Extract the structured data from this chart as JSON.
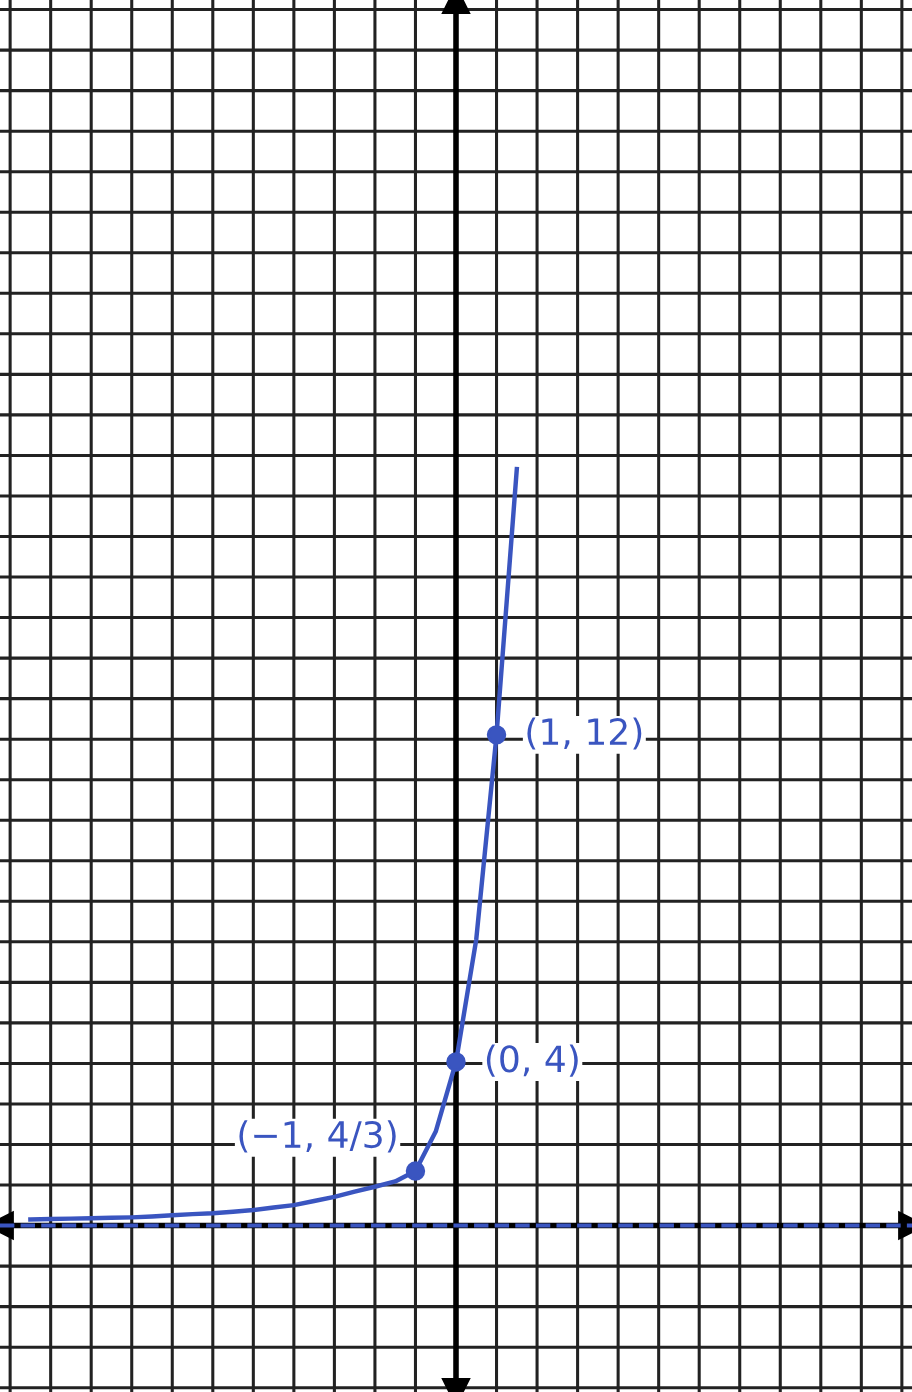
{
  "chart_data": {
    "type": "line",
    "categories": [
      null,
      null,
      null,
      null,
      null,
      null,
      null,
      null,
      null,
      null,
      null,
      null,
      null,
      null,
      null,
      null,
      null,
      null,
      null,
      null,
      null,
      null,
      null,
      null,
      null,
      null,
      null,
      null,
      null,
      null,
      null,
      null,
      null,
      null,
      null,
      null,
      null,
      null,
      null,
      null,
      null,
      null,
      null,
      null,
      null
    ],
    "series": [
      {
        "color": "#3a55c0",
        "values": [
          null,
          0.15,
          0.16,
          0.17,
          0.18,
          0.19,
          0.2,
          0.22,
          0.25,
          0.28,
          0.3,
          0.34,
          0.38,
          0.44,
          0.5,
          0.6,
          0.7,
          0.83,
          0.95,
          1.08,
          1.333,
          2.3,
          4,
          7,
          12,
          18.5,
          null,
          null,
          null,
          null,
          null,
          null,
          null,
          null,
          null,
          null,
          null,
          null,
          null,
          null,
          null,
          null,
          null,
          null,
          null
        ],
        "value_labels": [
          null,
          null,
          null,
          null,
          null,
          null,
          null,
          null,
          null,
          null,
          null,
          null,
          null,
          null,
          null,
          null,
          null,
          null,
          null,
          null,
          "(−1, 4/3)",
          null,
          "(0, 4)",
          null,
          "(1, 12)",
          null,
          null,
          null,
          null,
          null,
          null,
          null,
          null,
          null,
          null,
          null,
          null,
          null,
          null,
          null,
          null,
          null,
          null,
          null,
          null
        ]
      }
    ],
    "ref_lines": [
      {
        "axis": "y",
        "value": 0,
        "color": "#3a55c0",
        "line_style": "dashed"
      }
    ],
    "grid": true,
    "line_style": "solid"
  }
}
